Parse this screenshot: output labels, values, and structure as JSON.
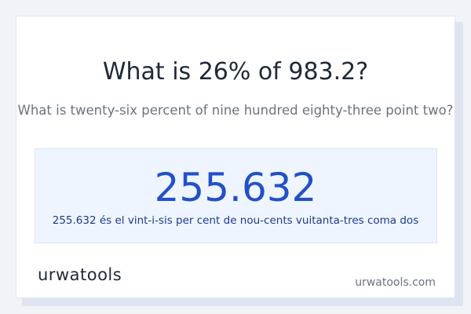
{
  "header": {
    "title": "What is 26% of 983.2?",
    "subtitle": "What is twenty-six percent of nine hundred eighty-three point two?"
  },
  "result": {
    "value": "255.632",
    "words": "255.632 és el vint-i-sis per cent de nou-cents vuitanta-tres coma dos"
  },
  "footer": {
    "logo": "urwatools",
    "site": "urwatools.com"
  }
}
